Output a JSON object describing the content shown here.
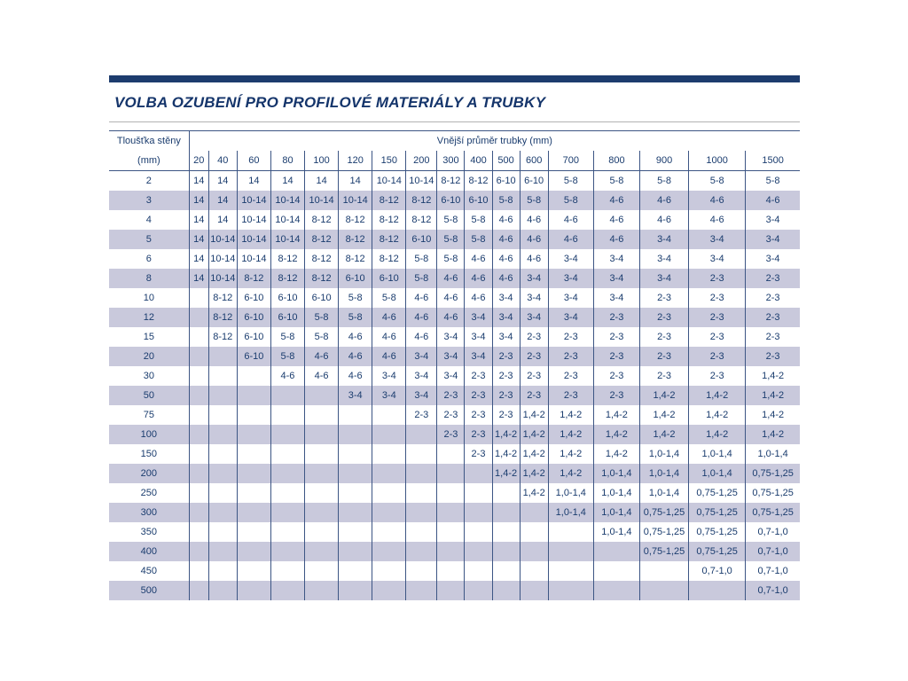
{
  "page": {
    "title": "VOLBA OZUBENÍ PRO PROFILOVÉ MATERIÁLY A TRUBKY"
  },
  "colors": {
    "accent": "#1d3c6e",
    "title": "#15356b",
    "grid": "#3c5584",
    "text": "#1a3c6e",
    "row_shade": "#c9c9dc"
  },
  "table": {
    "corner_header_line1": "Tloušťka stěny",
    "corner_header_line2": "(mm)",
    "group_header": "Vnější průměr trubky (mm)",
    "columns": [
      "20",
      "40",
      "60",
      "80",
      "100",
      "120",
      "150",
      "200",
      "300",
      "400",
      "500",
      "600",
      "700",
      "800",
      "900",
      "1000",
      "1500"
    ],
    "rows": [
      {
        "label": "2",
        "values": [
          "14",
          "14",
          "14",
          "14",
          "14",
          "14",
          "10-14",
          "10-14",
          "8-12",
          "8-12",
          "6-10",
          "6-10",
          "5-8",
          "5-8",
          "5-8",
          "5-8",
          "5-8"
        ]
      },
      {
        "label": "3",
        "values": [
          "14",
          "14",
          "10-14",
          "10-14",
          "10-14",
          "10-14",
          "8-12",
          "8-12",
          "6-10",
          "6-10",
          "5-8",
          "5-8",
          "5-8",
          "4-6",
          "4-6",
          "4-6",
          "4-6"
        ]
      },
      {
        "label": "4",
        "values": [
          "14",
          "14",
          "10-14",
          "10-14",
          "8-12",
          "8-12",
          "8-12",
          "8-12",
          "5-8",
          "5-8",
          "4-6",
          "4-6",
          "4-6",
          "4-6",
          "4-6",
          "4-6",
          "3-4"
        ]
      },
      {
        "label": "5",
        "values": [
          "14",
          "10-14",
          "10-14",
          "10-14",
          "8-12",
          "8-12",
          "8-12",
          "6-10",
          "5-8",
          "5-8",
          "4-6",
          "4-6",
          "4-6",
          "4-6",
          "3-4",
          "3-4",
          "3-4"
        ]
      },
      {
        "label": "6",
        "values": [
          "14",
          "10-14",
          "10-14",
          "8-12",
          "8-12",
          "8-12",
          "8-12",
          "5-8",
          "5-8",
          "4-6",
          "4-6",
          "4-6",
          "3-4",
          "3-4",
          "3-4",
          "3-4",
          "3-4"
        ]
      },
      {
        "label": "8",
        "values": [
          "14",
          "10-14",
          "8-12",
          "8-12",
          "8-12",
          "6-10",
          "6-10",
          "5-8",
          "4-6",
          "4-6",
          "4-6",
          "3-4",
          "3-4",
          "3-4",
          "3-4",
          "2-3",
          "2-3"
        ]
      },
      {
        "label": "10",
        "values": [
          "",
          "8-12",
          "6-10",
          "6-10",
          "6-10",
          "5-8",
          "5-8",
          "4-6",
          "4-6",
          "4-6",
          "3-4",
          "3-4",
          "3-4",
          "3-4",
          "2-3",
          "2-3",
          "2-3"
        ]
      },
      {
        "label": "12",
        "values": [
          "",
          "8-12",
          "6-10",
          "6-10",
          "5-8",
          "5-8",
          "4-6",
          "4-6",
          "4-6",
          "3-4",
          "3-4",
          "3-4",
          "3-4",
          "2-3",
          "2-3",
          "2-3",
          "2-3"
        ]
      },
      {
        "label": "15",
        "values": [
          "",
          "8-12",
          "6-10",
          "5-8",
          "5-8",
          "4-6",
          "4-6",
          "4-6",
          "3-4",
          "3-4",
          "3-4",
          "2-3",
          "2-3",
          "2-3",
          "2-3",
          "2-3",
          "2-3"
        ]
      },
      {
        "label": "20",
        "values": [
          "",
          "",
          "6-10",
          "5-8",
          "4-6",
          "4-6",
          "4-6",
          "3-4",
          "3-4",
          "3-4",
          "2-3",
          "2-3",
          "2-3",
          "2-3",
          "2-3",
          "2-3",
          "2-3"
        ]
      },
      {
        "label": "30",
        "values": [
          "",
          "",
          "",
          "4-6",
          "4-6",
          "4-6",
          "3-4",
          "3-4",
          "3-4",
          "2-3",
          "2-3",
          "2-3",
          "2-3",
          "2-3",
          "2-3",
          "2-3",
          "1,4-2"
        ]
      },
      {
        "label": "50",
        "values": [
          "",
          "",
          "",
          "",
          "",
          "3-4",
          "3-4",
          "3-4",
          "2-3",
          "2-3",
          "2-3",
          "2-3",
          "2-3",
          "2-3",
          "1,4-2",
          "1,4-2",
          "1,4-2"
        ]
      },
      {
        "label": "75",
        "values": [
          "",
          "",
          "",
          "",
          "",
          "",
          "",
          "2-3",
          "2-3",
          "2-3",
          "2-3",
          "1,4-2",
          "1,4-2",
          "1,4-2",
          "1,4-2",
          "1,4-2",
          "1,4-2"
        ]
      },
      {
        "label": "100",
        "values": [
          "",
          "",
          "",
          "",
          "",
          "",
          "",
          "",
          "2-3",
          "2-3",
          "1,4-2",
          "1,4-2",
          "1,4-2",
          "1,4-2",
          "1,4-2",
          "1,4-2",
          "1,4-2"
        ]
      },
      {
        "label": "150",
        "values": [
          "",
          "",
          "",
          "",
          "",
          "",
          "",
          "",
          "",
          "2-3",
          "1,4-2",
          "1,4-2",
          "1,4-2",
          "1,4-2",
          "1,0-1,4",
          "1,0-1,4",
          "1,0-1,4"
        ]
      },
      {
        "label": "200",
        "values": [
          "",
          "",
          "",
          "",
          "",
          "",
          "",
          "",
          "",
          "",
          "1,4-2",
          "1,4-2",
          "1,4-2",
          "1,0-1,4",
          "1,0-1,4",
          "1,0-1,4",
          "0,75-1,25"
        ]
      },
      {
        "label": "250",
        "values": [
          "",
          "",
          "",
          "",
          "",
          "",
          "",
          "",
          "",
          "",
          "",
          "1,4-2",
          "1,0-1,4",
          "1,0-1,4",
          "1,0-1,4",
          "0,75-1,25",
          "0,75-1,25"
        ]
      },
      {
        "label": "300",
        "values": [
          "",
          "",
          "",
          "",
          "",
          "",
          "",
          "",
          "",
          "",
          "",
          "",
          "1,0-1,4",
          "1,0-1,4",
          "0,75-1,25",
          "0,75-1,25",
          "0,75-1,25"
        ]
      },
      {
        "label": "350",
        "values": [
          "",
          "",
          "",
          "",
          "",
          "",
          "",
          "",
          "",
          "",
          "",
          "",
          "",
          "1,0-1,4",
          "0,75-1,25",
          "0,75-1,25",
          "0,7-1,0"
        ]
      },
      {
        "label": "400",
        "values": [
          "",
          "",
          "",
          "",
          "",
          "",
          "",
          "",
          "",
          "",
          "",
          "",
          "",
          "",
          "0,75-1,25",
          "0,75-1,25",
          "0,7-1,0"
        ]
      },
      {
        "label": "450",
        "values": [
          "",
          "",
          "",
          "",
          "",
          "",
          "",
          "",
          "",
          "",
          "",
          "",
          "",
          "",
          "",
          "0,7-1,0",
          "0,7-1,0"
        ]
      },
      {
        "label": "500",
        "values": [
          "",
          "",
          "",
          "",
          "",
          "",
          "",
          "",
          "",
          "",
          "",
          "",
          "",
          "",
          "",
          "",
          "0,7-1,0"
        ]
      }
    ]
  }
}
